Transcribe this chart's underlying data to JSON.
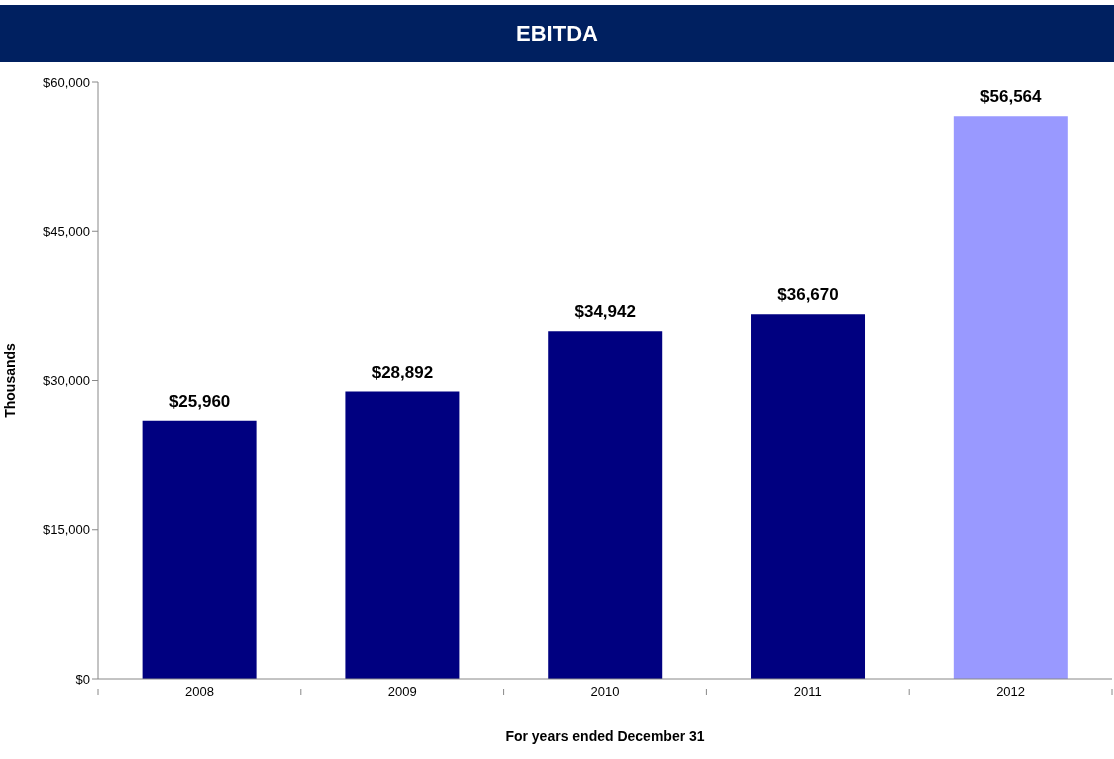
{
  "chart_data": {
    "type": "bar",
    "title": "EBITDA",
    "xlabel": "For years ended December 31",
    "ylabel": "Thousands",
    "categories": [
      "2008",
      "2009",
      "2010",
      "2011",
      "2012"
    ],
    "values": [
      25960,
      28892,
      34942,
      36670,
      56564
    ],
    "colors": [
      "#000080",
      "#000080",
      "#000080",
      "#000080",
      "#9999ff"
    ],
    "value_labels": [
      "$25,960",
      "$28,892",
      "$34,942",
      "$36,670",
      "$56,564"
    ],
    "ylim": [
      0,
      60000
    ],
    "yticks": [
      {
        "value": 0,
        "label": "$0"
      },
      {
        "value": 15000,
        "label": "$15,000"
      },
      {
        "value": 30000,
        "label": "$30,000"
      },
      {
        "value": 45000,
        "label": "$45,000"
      },
      {
        "value": 60000,
        "label": "$60,000"
      }
    ],
    "grid": false
  }
}
